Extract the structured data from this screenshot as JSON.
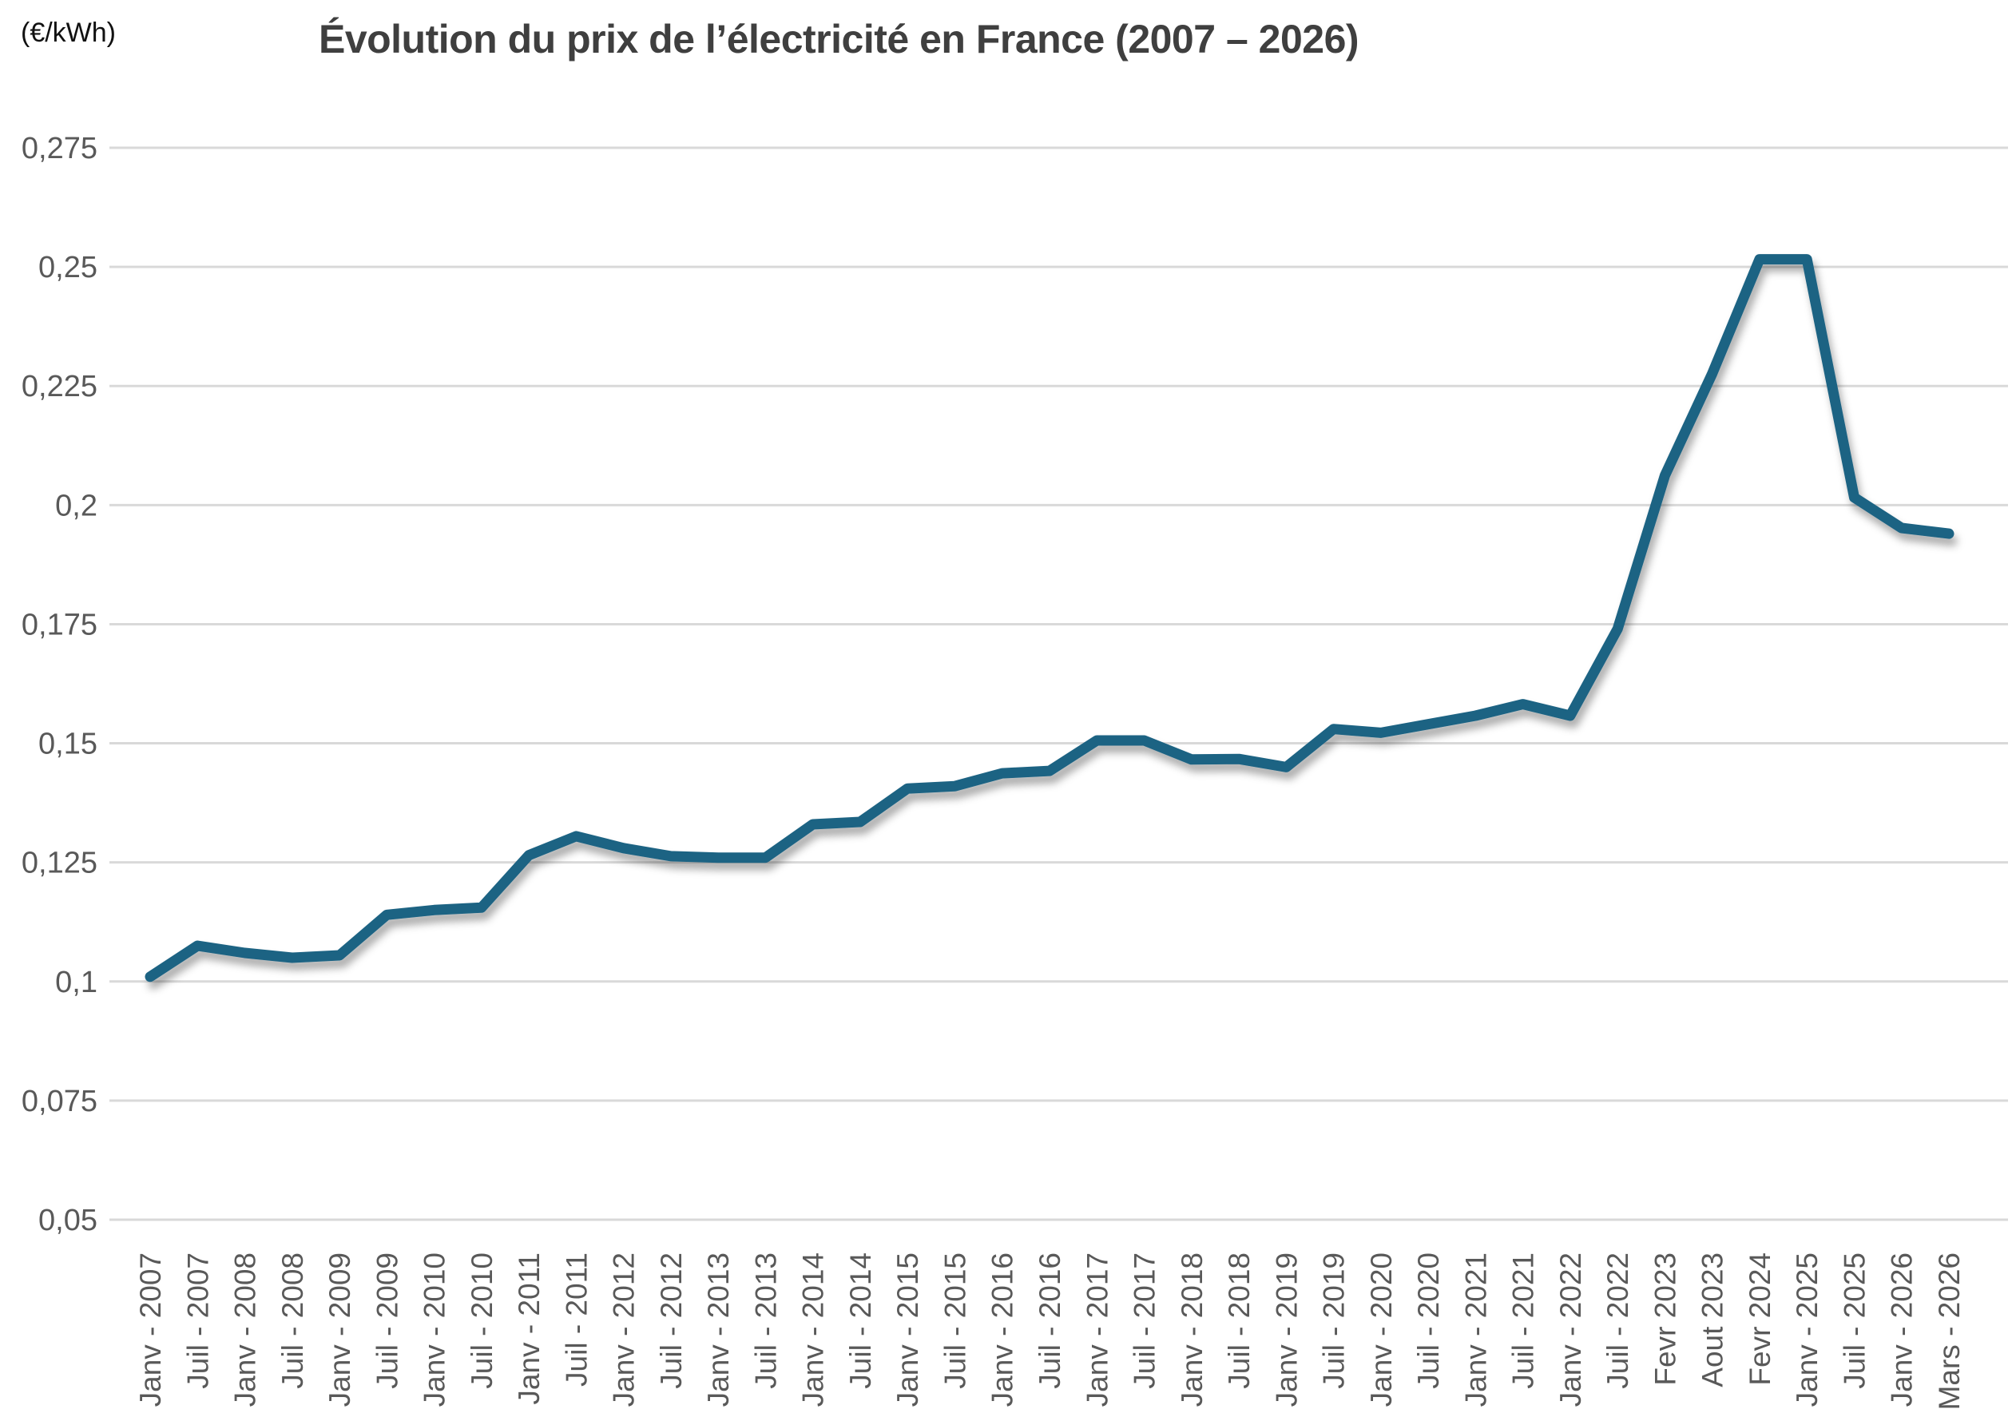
{
  "header": {
    "unit_label": "(€/kWh)",
    "title": "Évolution du prix de l’électricité en France (2007 – 2026)"
  },
  "chart_data": {
    "type": "line",
    "title": "Évolution du prix de l’électricité en France (2007 – 2026)",
    "ylabel": "(€/kWh)",
    "xlabel": "",
    "grid": true,
    "legend": "none",
    "ylim": [
      0.05,
      0.275
    ],
    "ytick_labels": [
      "0,275",
      "0,25",
      "0,225",
      "0,2",
      "0,175",
      "0,15",
      "0,125",
      "0,1",
      "0,075",
      "0,05"
    ],
    "ytick_values": [
      0.275,
      0.25,
      0.225,
      0.2,
      0.175,
      0.15,
      0.125,
      0.1,
      0.075,
      0.05
    ],
    "categories": [
      "Janv - 2007",
      "Juil - 2007",
      "Janv - 2008",
      "Juil - 2008",
      "Janv - 2009",
      "Juil - 2009",
      "Janv - 2010",
      "Juil - 2010",
      "Janv - 2011",
      "Juil - 2011",
      "Janv - 2012",
      "Juil - 2012",
      "Janv - 2013",
      "Juil - 2013",
      "Janv - 2014",
      "Juil - 2014",
      "Janv - 2015",
      "Juil - 2015",
      "Janv - 2016",
      "Juil - 2016",
      "Janv - 2017",
      "Juil - 2017",
      "Janv - 2018",
      "Juil - 2018",
      "Janv - 2019",
      "Juil - 2019",
      "Janv - 2020",
      "Juil - 2020",
      "Janv - 2021",
      "Juil - 2021",
      "Janv - 2022",
      "Juil - 2022",
      "Fevr 2023",
      "Aout 2023",
      "Fevr 2024",
      "Janv - 2025",
      "Juil - 2025",
      "Janv - 2026",
      "Mars - 2026"
    ],
    "values": [
      0.101,
      0.1075,
      0.106,
      0.105,
      0.1055,
      0.114,
      0.115,
      0.1155,
      0.1265,
      0.1305,
      0.128,
      0.1263,
      0.126,
      0.126,
      0.133,
      0.1335,
      0.1405,
      0.141,
      0.1437,
      0.1442,
      0.1506,
      0.1506,
      0.1466,
      0.1467,
      0.145,
      0.153,
      0.1522,
      0.154,
      0.1558,
      0.1582,
      0.1558,
      0.174,
      0.2062,
      0.2276,
      0.2516,
      0.2516,
      0.2016,
      0.1952,
      0.194
    ],
    "colors": {
      "line": "#1F6383",
      "gridline": "#D9D9D9",
      "axis_text": "#595959",
      "title_text": "#3F3F3F",
      "background": "#FFFFFF"
    }
  }
}
